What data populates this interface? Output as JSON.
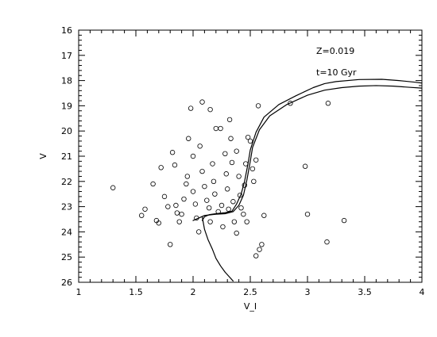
{
  "chart_data": {
    "type": "scatter",
    "title": "",
    "xlabel": "V_I",
    "ylabel": "V",
    "xlim": [
      1,
      4
    ],
    "ylim": [
      16,
      26
    ],
    "y_inverted": true,
    "x_ticks": [
      "1",
      "1.5",
      "2",
      "2.5",
      "3",
      "3.5",
      "4"
    ],
    "y_ticks": [
      "16",
      "17",
      "18",
      "19",
      "20",
      "21",
      "22",
      "23",
      "24",
      "25",
      "26"
    ],
    "annotations": [
      "Z=0.019",
      "t=10 Gyr"
    ],
    "series": [
      {
        "kind": "points",
        "marker": "open-circle",
        "points": [
          [
            1.3,
            22.25
          ],
          [
            1.55,
            23.35
          ],
          [
            1.58,
            23.1
          ],
          [
            1.65,
            22.1
          ],
          [
            1.68,
            23.55
          ],
          [
            1.7,
            23.65
          ],
          [
            1.72,
            21.45
          ],
          [
            1.75,
            22.6
          ],
          [
            1.78,
            23.0
          ],
          [
            1.8,
            24.5
          ],
          [
            1.82,
            20.85
          ],
          [
            1.84,
            21.35
          ],
          [
            1.85,
            22.95
          ],
          [
            1.86,
            23.25
          ],
          [
            1.88,
            23.6
          ],
          [
            1.9,
            23.3
          ],
          [
            1.92,
            22.7
          ],
          [
            1.94,
            22.1
          ],
          [
            1.95,
            21.8
          ],
          [
            1.96,
            20.3
          ],
          [
            1.98,
            19.1
          ],
          [
            2.0,
            21.0
          ],
          [
            2.0,
            22.4
          ],
          [
            2.02,
            22.9
          ],
          [
            2.03,
            23.45
          ],
          [
            2.05,
            24.0
          ],
          [
            2.06,
            20.6
          ],
          [
            2.08,
            21.6
          ],
          [
            2.08,
            18.85
          ],
          [
            2.1,
            22.2
          ],
          [
            2.12,
            22.75
          ],
          [
            2.14,
            23.05
          ],
          [
            2.15,
            19.15
          ],
          [
            2.15,
            23.6
          ],
          [
            2.17,
            21.3
          ],
          [
            2.18,
            22.0
          ],
          [
            2.19,
            22.5
          ],
          [
            2.2,
            19.9
          ],
          [
            2.22,
            23.2
          ],
          [
            2.24,
            19.9
          ],
          [
            2.25,
            22.95
          ],
          [
            2.26,
            23.8
          ],
          [
            2.28,
            20.9
          ],
          [
            2.29,
            21.7
          ],
          [
            2.3,
            22.3
          ],
          [
            2.31,
            23.1
          ],
          [
            2.32,
            19.55
          ],
          [
            2.33,
            20.3
          ],
          [
            2.34,
            21.25
          ],
          [
            2.35,
            22.8
          ],
          [
            2.36,
            23.6
          ],
          [
            2.38,
            24.05
          ],
          [
            2.38,
            20.8
          ],
          [
            2.4,
            21.8
          ],
          [
            2.41,
            22.55
          ],
          [
            2.42,
            23.05
          ],
          [
            2.44,
            23.3
          ],
          [
            2.45,
            22.15
          ],
          [
            2.46,
            21.3
          ],
          [
            2.47,
            23.6
          ],
          [
            2.48,
            20.25
          ],
          [
            2.5,
            20.4
          ],
          [
            2.52,
            21.5
          ],
          [
            2.53,
            22.0
          ],
          [
            2.55,
            21.15
          ],
          [
            2.57,
            19.0
          ],
          [
            2.58,
            24.7
          ],
          [
            2.6,
            24.5
          ],
          [
            2.62,
            23.35
          ],
          [
            2.85,
            18.9
          ],
          [
            3.18,
            18.9
          ],
          [
            3.17,
            24.4
          ],
          [
            2.98,
            21.4
          ],
          [
            3.0,
            23.3
          ],
          [
            3.32,
            23.55
          ],
          [
            2.55,
            24.95
          ]
        ]
      },
      {
        "kind": "line",
        "name": "",
        "points": [
          [
            2.08,
            23.55
          ],
          [
            2.1,
            23.4
          ],
          [
            2.14,
            23.32
          ],
          [
            2.2,
            23.28
          ],
          [
            2.28,
            23.24
          ],
          [
            2.34,
            23.18
          ],
          [
            2.38,
            22.9
          ],
          [
            2.42,
            22.5
          ],
          [
            2.45,
            22.0
          ],
          [
            2.48,
            21.3
          ],
          [
            2.5,
            20.75
          ],
          [
            2.55,
            20.05
          ],
          [
            2.62,
            19.45
          ],
          [
            2.75,
            18.95
          ],
          [
            2.9,
            18.6
          ],
          [
            3.05,
            18.28
          ],
          [
            3.15,
            18.12
          ],
          [
            3.25,
            18.04
          ],
          [
            3.45,
            17.96
          ],
          [
            3.65,
            17.95
          ],
          [
            3.8,
            18.0
          ],
          [
            3.95,
            18.07
          ],
          [
            4.0,
            18.1
          ]
        ]
      },
      {
        "kind": "line",
        "name": "",
        "points": [
          [
            2.0,
            23.55
          ],
          [
            2.05,
            23.45
          ],
          [
            2.1,
            23.35
          ],
          [
            2.2,
            23.3
          ],
          [
            2.28,
            23.28
          ],
          [
            2.35,
            23.2
          ],
          [
            2.4,
            22.95
          ],
          [
            2.44,
            22.55
          ],
          [
            2.47,
            21.95
          ],
          [
            2.5,
            21.2
          ],
          [
            2.52,
            20.65
          ],
          [
            2.58,
            19.95
          ],
          [
            2.67,
            19.4
          ],
          [
            2.82,
            18.95
          ],
          [
            3.0,
            18.58
          ],
          [
            3.15,
            18.38
          ],
          [
            3.3,
            18.28
          ],
          [
            3.45,
            18.22
          ],
          [
            3.6,
            18.2
          ],
          [
            3.75,
            18.22
          ],
          [
            3.9,
            18.27
          ],
          [
            4.0,
            18.3
          ]
        ]
      },
      {
        "kind": "line",
        "name": "",
        "points": [
          [
            2.08,
            23.4
          ],
          [
            2.1,
            23.9
          ],
          [
            2.13,
            24.3
          ],
          [
            2.17,
            24.7
          ],
          [
            2.2,
            25.05
          ],
          [
            2.24,
            25.35
          ],
          [
            2.28,
            25.6
          ],
          [
            2.32,
            25.8
          ],
          [
            2.35,
            25.95
          ]
        ]
      }
    ]
  }
}
